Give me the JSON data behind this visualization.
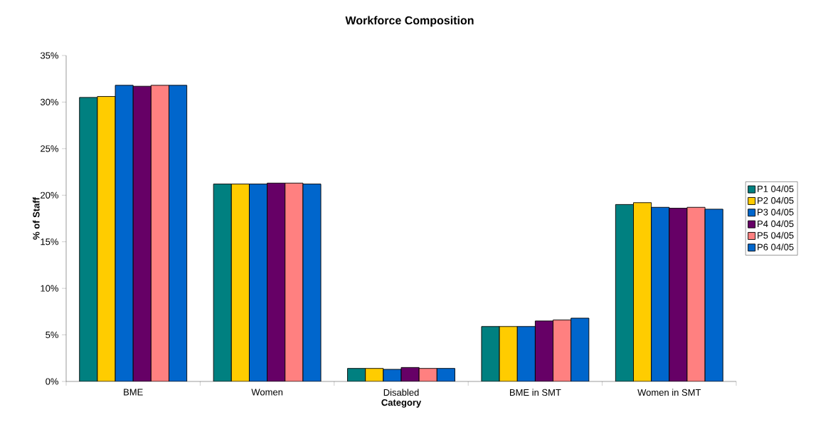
{
  "chart_data": {
    "type": "bar",
    "title": "**Workforce Composition**",
    "xlabel": "**Category**",
    "ylabel": "**% of Staff**",
    "categories": [
      "BME",
      "Women",
      "Disabled",
      "BME in SMT",
      "Women in SMT"
    ],
    "series": [
      {
        "name": "P1 04/05",
        "color": "#008080",
        "values": [
          30.5,
          21.2,
          1.4,
          5.9,
          19.0
        ]
      },
      {
        "name": "P2 04/05",
        "color": "#ffcc00",
        "values": [
          30.6,
          21.2,
          1.4,
          5.9,
          19.2
        ]
      },
      {
        "name": "P3 04/05",
        "color": "#0066cc",
        "values": [
          31.8,
          21.2,
          1.3,
          5.9,
          18.7
        ]
      },
      {
        "name": "P4 04/05",
        "color": "#660066",
        "values": [
          31.7,
          21.3,
          1.5,
          6.5,
          18.6
        ]
      },
      {
        "name": "P5 04/05",
        "color": "#ff8080",
        "values": [
          31.8,
          21.3,
          1.4,
          6.6,
          18.7
        ]
      },
      {
        "name": "P6 04/05",
        "color": "#0066cc",
        "values": [
          31.8,
          21.2,
          1.4,
          6.8,
          18.5
        ]
      }
    ],
    "ylim": [
      0,
      35
    ],
    "yticks": [
      {
        "value": 0,
        "label": "0%"
      },
      {
        "value": 5,
        "label": "5%"
      },
      {
        "value": 10,
        "label": "10%"
      },
      {
        "value": 15,
        "label": "15%"
      },
      {
        "value": 20,
        "label": "20%"
      },
      {
        "value": 25,
        "label": "25%"
      },
      {
        "value": 30,
        "label": "30%"
      },
      {
        "value": 35,
        "label": "35%"
      }
    ],
    "grid": false,
    "legend": "right"
  }
}
